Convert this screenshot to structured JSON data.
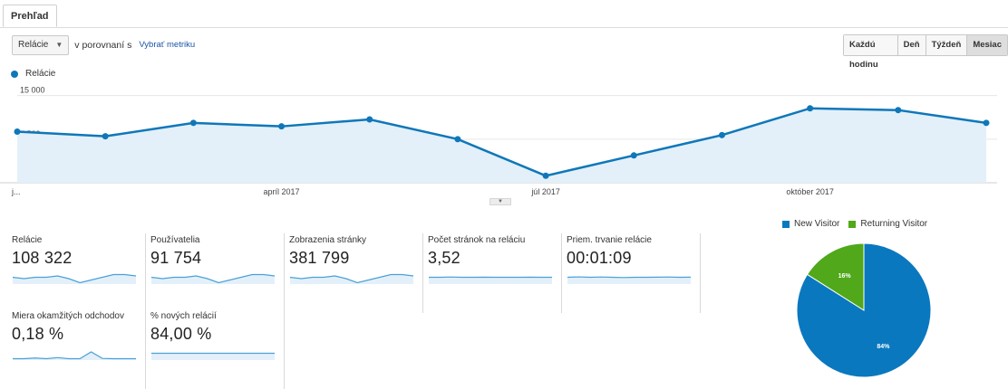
{
  "tabs": [
    {
      "label": "Prehľad"
    }
  ],
  "toolbar": {
    "metric_select": "Relácie",
    "compare_label": "v porovnaní s",
    "select_metric_link": "Vybrať metriku"
  },
  "granularity": {
    "options": [
      "Každú hodinu",
      "Deň",
      "Týždeň",
      "Mesiac"
    ],
    "active": "Mesiac"
  },
  "chart_data": [
    {
      "type": "area",
      "series": [
        {
          "name": "Relácie",
          "values": [
            8800,
            8000,
            10300,
            9700,
            10900,
            7500,
            1200,
            4700,
            8200,
            12800,
            12500,
            10300
          ]
        }
      ],
      "y_ticks": [
        "15 000",
        "7 500"
      ],
      "ylim": [
        0,
        16500
      ],
      "x_tick_labels": [
        {
          "index": 0,
          "label": "j..."
        },
        {
          "index": 3,
          "label": "apríl 2017"
        },
        {
          "index": 6,
          "label": "júl 2017"
        },
        {
          "index": 9,
          "label": "október 2017"
        }
      ],
      "colors": {
        "line": "#0f77b9",
        "fill": "#e3f0f9",
        "grid": "#e6e6e6"
      }
    },
    {
      "type": "pie",
      "legend": "top",
      "slices": [
        {
          "name": "New Visitor",
          "value": 84,
          "label": "84%",
          "color": "#0a78bf"
        },
        {
          "name": "Returning Visitor",
          "value": 16,
          "label": "16%",
          "color": "#50a81a"
        }
      ]
    }
  ],
  "metrics": [
    {
      "label": "Relácie",
      "value": "108 322",
      "spark": [
        5,
        4,
        5,
        5,
        6,
        4,
        1,
        3,
        5,
        7,
        7,
        6
      ]
    },
    {
      "label": "Používatelia",
      "value": "91 754",
      "spark": [
        5,
        4,
        5,
        5,
        6,
        4,
        1,
        3,
        5,
        7,
        7,
        6
      ]
    },
    {
      "label": "Zobrazenia stránky",
      "value": "381 799",
      "spark": [
        5,
        4,
        5,
        5,
        6,
        4,
        1,
        3,
        5,
        7,
        7,
        6
      ]
    },
    {
      "label": "Počet stránok na reláciu",
      "value": "3,52",
      "spark": [
        5,
        5,
        5.2,
        5,
        5,
        5.1,
        5,
        5,
        5,
        5.1,
        5,
        5
      ]
    },
    {
      "label": "Priem. trvanie relácie",
      "value": "00:01:09",
      "spark": [
        5,
        5.3,
        5,
        5.2,
        5,
        4.8,
        5,
        5,
        5.1,
        5.2,
        5,
        5.1
      ]
    },
    {
      "label": "Miera okamžitých odchodov",
      "value": "0,18 %",
      "spark": [
        1,
        1,
        1.5,
        1,
        1.8,
        1,
        1,
        6,
        1.2,
        1,
        1,
        1
      ]
    },
    {
      "label": "% nových relácií",
      "value": "84,00 %",
      "spark": [
        5,
        5,
        5,
        5,
        5,
        5,
        5,
        5,
        5,
        5,
        5,
        5
      ]
    }
  ],
  "colors": {
    "accent": "#0f77b9",
    "spark_fill": "#e3f0f9"
  }
}
